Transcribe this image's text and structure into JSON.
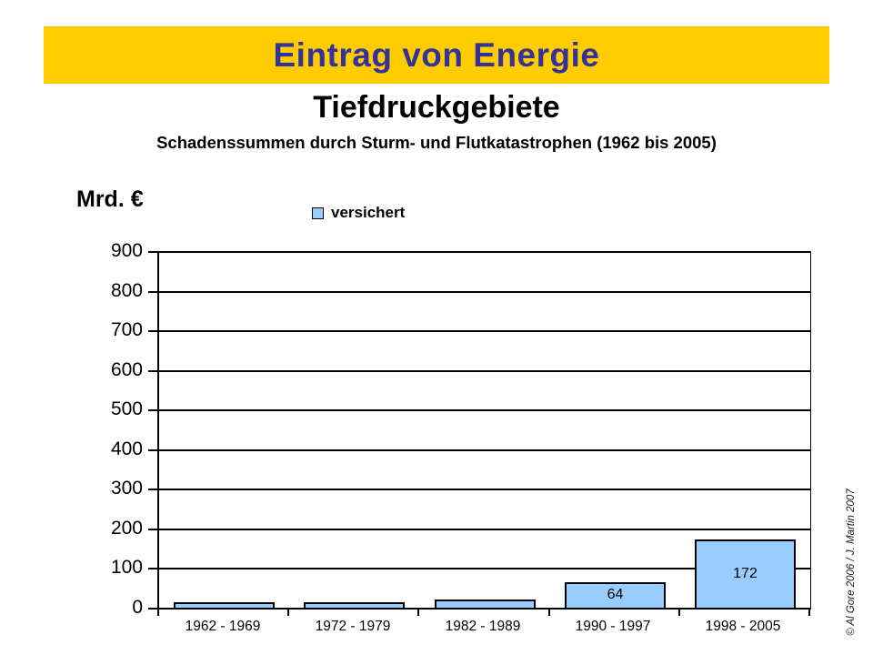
{
  "slide": {
    "banner_title": "Eintrag von Energie",
    "title": "Tiefdruckgebiete",
    "subtitle": "Schadenssummen durch Sturm- und Flutkatastrophen (1962 bis 2005)",
    "copyright": "© Al Gore 2006 /  J. Martin 2007"
  },
  "legend": {
    "label": "versichert"
  },
  "colors": {
    "banner_bg": "#FFCC00",
    "banner_text": "#333399",
    "bar_fill": "#99CCFF",
    "bar_border": "#000000",
    "text": "#000000"
  },
  "chart_data": {
    "type": "bar",
    "title": "Schadenssummen durch Sturm- und Flutkatastrophen (1962 bis 2005)",
    "categories": [
      "1962 - 1969",
      "1972 - 1979",
      "1982 - 1989",
      "1990 - 1997",
      "1998 - 2005"
    ],
    "series": [
      {
        "name": "versichert",
        "values": [
          13,
          13,
          20,
          64,
          172
        ],
        "data_labels": [
          "",
          "",
          "",
          "64",
          "172"
        ]
      }
    ],
    "xlabel": "",
    "ylabel": "Mrd. €",
    "ylim": [
      0,
      900
    ],
    "ytick_step": 100,
    "grid": true,
    "legend_position": "top"
  }
}
